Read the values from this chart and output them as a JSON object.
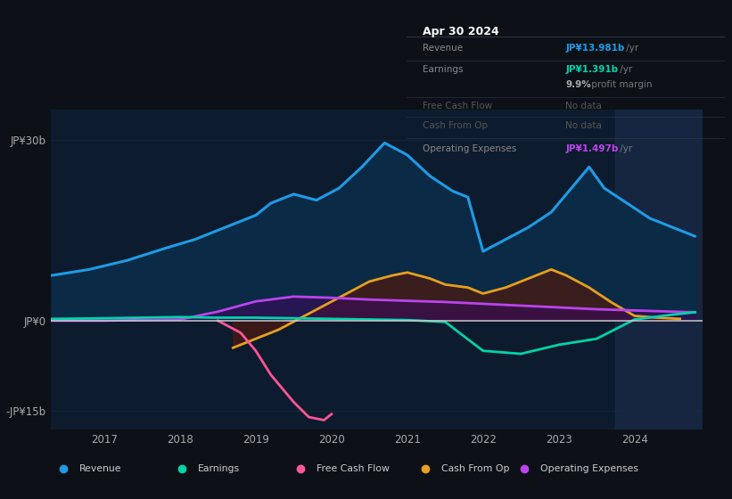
{
  "background_color": "#0d1117",
  "chart_bg_color": "#0d1b2e",
  "text_color": "#aaaaaa",
  "grid_color": "#1a2d3a",
  "zero_line_color": "#cccccc",
  "xlim": [
    2016.3,
    2024.9
  ],
  "ylim": [
    -18,
    35
  ],
  "ytick_values": [
    30,
    0,
    -15
  ],
  "ytick_labels": [
    "JP¥30b",
    "JP¥0",
    "-JP¥15b"
  ],
  "xtick_values": [
    2017,
    2018,
    2019,
    2020,
    2021,
    2022,
    2023,
    2024
  ],
  "xtick_labels": [
    "2017",
    "2018",
    "2019",
    "2020",
    "2021",
    "2022",
    "2023",
    "2024"
  ],
  "shaded_region_start": 2023.75,
  "revenue": {
    "x": [
      2016.3,
      2016.8,
      2017.3,
      2017.8,
      2018.2,
      2018.6,
      2019.0,
      2019.2,
      2019.5,
      2019.8,
      2020.1,
      2020.4,
      2020.7,
      2021.0,
      2021.3,
      2021.6,
      2021.8,
      2022.0,
      2022.3,
      2022.6,
      2022.9,
      2023.1,
      2023.4,
      2023.6,
      2023.9,
      2024.2,
      2024.5,
      2024.8
    ],
    "y": [
      7.5,
      8.5,
      10.0,
      12.0,
      13.5,
      15.5,
      17.5,
      19.5,
      21.0,
      20.0,
      22.0,
      25.5,
      29.5,
      27.5,
      24.0,
      21.5,
      20.5,
      11.5,
      13.5,
      15.5,
      18.0,
      21.0,
      25.5,
      22.0,
      19.5,
      17.0,
      15.5,
      14.0
    ],
    "color": "#1e9be6",
    "fill_color": "#0a2a45",
    "linewidth": 2.2
  },
  "earnings": {
    "x": [
      2016.3,
      2017.0,
      2017.5,
      2018.0,
      2018.5,
      2019.0,
      2019.5,
      2020.0,
      2020.5,
      2021.0,
      2021.5,
      2022.0,
      2022.5,
      2023.0,
      2023.5,
      2024.0,
      2024.5,
      2024.8
    ],
    "y": [
      0.3,
      0.4,
      0.5,
      0.6,
      0.5,
      0.5,
      0.4,
      0.3,
      0.2,
      0.1,
      -0.2,
      -5.0,
      -5.5,
      -4.0,
      -3.0,
      0.2,
      1.0,
      1.4
    ],
    "color": "#00d4aa",
    "linewidth": 2.0
  },
  "free_cash_flow": {
    "x": [
      2018.5,
      2018.8,
      2019.0,
      2019.2,
      2019.5,
      2019.7,
      2019.9,
      2020.0
    ],
    "y": [
      0.0,
      -2.0,
      -5.0,
      -9.0,
      -13.5,
      -16.0,
      -16.5,
      -15.5
    ],
    "color": "#ff5599",
    "linewidth": 2.0
  },
  "cash_from_op": {
    "x": [
      2018.7,
      2019.0,
      2019.3,
      2019.6,
      2019.9,
      2020.2,
      2020.5,
      2020.8,
      2021.0,
      2021.3,
      2021.5,
      2021.8,
      2022.0,
      2022.3,
      2022.6,
      2022.9,
      2023.1,
      2023.4,
      2023.7,
      2024.0,
      2024.3,
      2024.6
    ],
    "y": [
      -4.5,
      -3.0,
      -1.5,
      0.5,
      2.5,
      4.5,
      6.5,
      7.5,
      8.0,
      7.0,
      6.0,
      5.5,
      4.5,
      5.5,
      7.0,
      8.5,
      7.5,
      5.5,
      3.0,
      0.8,
      0.5,
      0.3
    ],
    "color": "#e6a020",
    "fill_color": "#4a1a10",
    "fill_alpha": 0.75,
    "linewidth": 2.0
  },
  "operating_expenses": {
    "x": [
      2016.3,
      2017.0,
      2017.5,
      2018.0,
      2018.5,
      2019.0,
      2019.5,
      2020.0,
      2020.5,
      2021.0,
      2021.5,
      2022.0,
      2022.5,
      2023.0,
      2023.5,
      2024.0,
      2024.5,
      2024.8
    ],
    "y": [
      0.0,
      0.0,
      0.1,
      0.2,
      1.5,
      3.2,
      4.0,
      3.8,
      3.5,
      3.3,
      3.1,
      2.8,
      2.5,
      2.2,
      1.9,
      1.7,
      1.5,
      1.4
    ],
    "color": "#bb44ee",
    "fill_color": "#3a0a5a",
    "fill_alpha": 0.6,
    "linewidth": 2.0
  },
  "legend": [
    {
      "label": "Revenue",
      "color": "#1e9be6"
    },
    {
      "label": "Earnings",
      "color": "#00d4aa"
    },
    {
      "label": "Free Cash Flow",
      "color": "#ff5599"
    },
    {
      "label": "Cash From Op",
      "color": "#e6a020"
    },
    {
      "label": "Operating Expenses",
      "color": "#bb44ee"
    }
  ],
  "tooltip": {
    "title": "Apr 30 2024",
    "title_color": "#ffffff",
    "bg_color": "#111827",
    "border_color": "#2a3a4a",
    "rows": [
      {
        "label": "Revenue",
        "value": "JP¥13.981b",
        "suffix": " /yr",
        "value_color": "#1e9be6",
        "dim": false
      },
      {
        "label": "Earnings",
        "value": "JP¥1.391b",
        "suffix": " /yr",
        "value_color": "#00d4aa",
        "dim": false
      },
      {
        "label": "",
        "value": "9.9%",
        "suffix": " profit margin",
        "value_color": "#aaaaaa",
        "dim": false
      },
      {
        "label": "Free Cash Flow",
        "value": "No data",
        "suffix": "",
        "value_color": "#555555",
        "dim": true
      },
      {
        "label": "Cash From Op",
        "value": "No data",
        "suffix": "",
        "value_color": "#555555",
        "dim": true
      },
      {
        "label": "Operating Expenses",
        "value": "JP¥1.497b",
        "suffix": " /yr",
        "value_color": "#bb44ee",
        "dim": false
      }
    ]
  }
}
